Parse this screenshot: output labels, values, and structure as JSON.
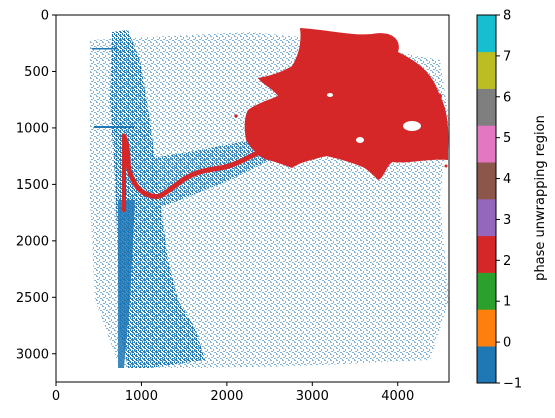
{
  "chart_data": {
    "type": "heatmap",
    "title": "",
    "xlabel": "",
    "ylabel": "",
    "xlim": [
      0,
      4600
    ],
    "ylim": [
      3250,
      0
    ],
    "x_ticks": [
      0,
      1000,
      2000,
      3000,
      4000
    ],
    "y_ticks": [
      0,
      500,
      1000,
      1500,
      2000,
      2500,
      3000
    ],
    "x_tick_labels": [
      "0",
      "1000",
      "2000",
      "3000",
      "4000"
    ],
    "y_tick_labels": [
      "0",
      "500",
      "1000",
      "1500",
      "2000",
      "2500",
      "3000"
    ],
    "colorbar": {
      "label": "phase unwrapping region",
      "range": [
        -1,
        8
      ],
      "ticks": [
        "−1",
        "0",
        "1",
        "2",
        "3",
        "4",
        "5",
        "6",
        "7",
        "8"
      ],
      "colors": [
        "#1f77b4",
        "#ff7f0e",
        "#2ca02c",
        "#d62728",
        "#9467bd",
        "#8c564b",
        "#e377c2",
        "#7f7f7f",
        "#bcbd22",
        "#17becf"
      ]
    },
    "regions": [
      {
        "value": -1,
        "color": "#1f77b4",
        "description_extent_x": [
          650,
          4550
        ],
        "description_extent_y": [
          180,
          3100
        ]
      },
      {
        "value": 2,
        "color": "#d62728",
        "description_extent_x": [
          780,
          4560
        ],
        "description_extent_y": [
          150,
          1820
        ]
      }
    ]
  }
}
